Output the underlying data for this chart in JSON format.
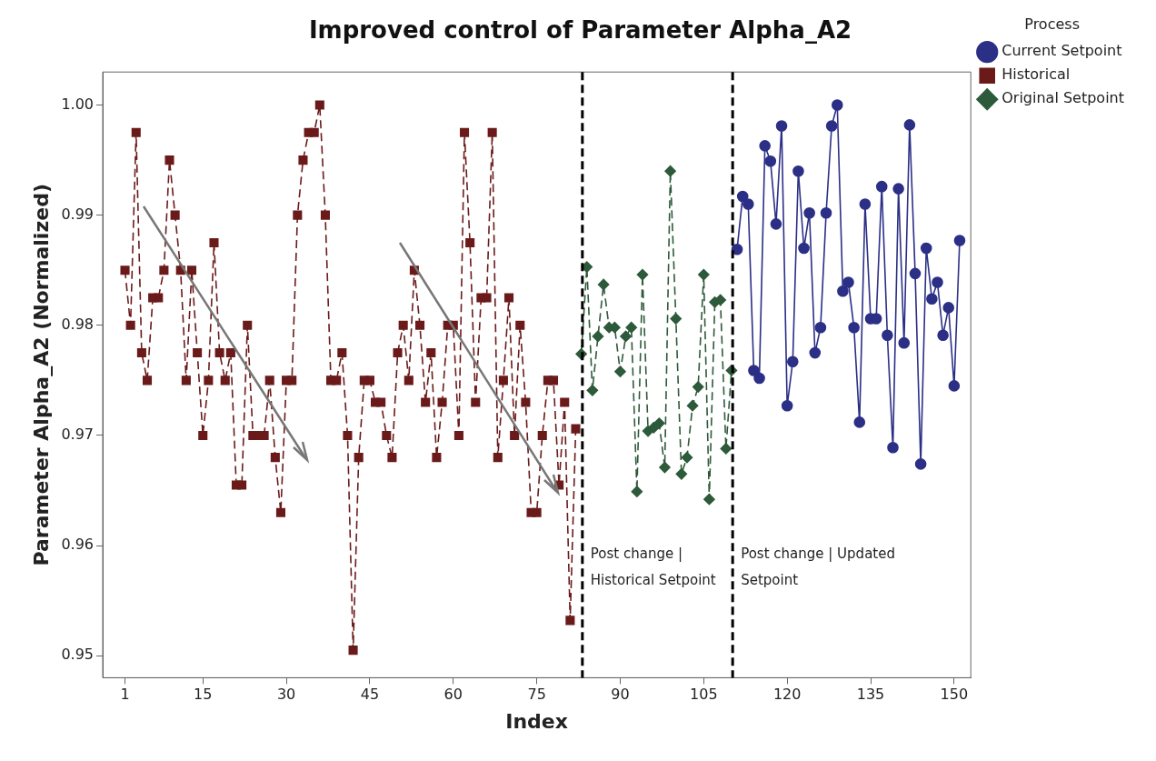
{
  "chart_data": {
    "type": "line",
    "title": "Improved control of Parameter Alpha_A2",
    "xlabel": "Index",
    "ylabel": "Parameter Alpha_A2 (Normalized)",
    "legend_title": "Process",
    "legend": "top right",
    "grid": false,
    "xlim": [
      -3,
      153
    ],
    "xticks": [
      1,
      15,
      30,
      45,
      60,
      75,
      90,
      105,
      120,
      135,
      150
    ],
    "ylim": [
      0.948,
      1.003
    ],
    "yticks": [
      0.95,
      0.96,
      0.97,
      0.98,
      0.99,
      {
        "value": 1,
        "label": "1.00"
      }
    ],
    "series": [
      {
        "name": "Current Setpoint",
        "color": "#2b2f86",
        "marker": "circle",
        "line_style": "solid",
        "x": [
          111,
          112,
          113,
          114,
          115,
          116,
          117,
          118,
          119,
          120,
          121,
          122,
          123,
          124,
          125,
          126,
          127,
          128,
          129,
          130,
          131,
          132,
          133,
          134,
          135,
          136,
          137,
          138,
          139,
          140,
          141,
          142,
          143,
          144,
          145,
          146,
          147,
          148,
          149,
          150,
          151
        ],
        "values": [
          0.9869,
          0.9917,
          0.991,
          0.9759,
          0.9752,
          0.9963,
          0.9949,
          0.9892,
          0.9981,
          0.9727,
          0.9767,
          0.994,
          0.987,
          0.9902,
          0.9775,
          0.9798,
          0.9902,
          0.9981,
          1.0,
          0.9831,
          0.9839,
          0.9798,
          0.9712,
          0.991,
          0.9806,
          0.9806,
          0.9926,
          0.9791,
          0.9689,
          0.9924,
          0.9784,
          0.9982,
          0.9847,
          0.9674,
          0.987,
          0.9824,
          0.9839,
          0.9791,
          0.9816,
          0.9745,
          0.9877
        ]
      },
      {
        "name": "Historical",
        "color": "#6b1a1a",
        "marker": "square",
        "line_style": "dashed",
        "x": [
          1,
          2,
          3,
          4,
          5,
          6,
          7,
          8,
          9,
          10,
          11,
          12,
          13,
          14,
          15,
          16,
          17,
          18,
          19,
          20,
          21,
          22,
          23,
          24,
          25,
          26,
          27,
          28,
          29,
          30,
          31,
          32,
          33,
          34,
          35,
          36,
          37,
          38,
          39,
          40,
          41,
          42,
          43,
          44,
          45,
          46,
          47,
          48,
          49,
          50,
          51,
          52,
          53,
          54,
          55,
          56,
          57,
          58,
          59,
          60,
          61,
          62,
          63,
          64,
          65,
          66,
          67,
          68,
          69,
          70,
          71,
          72,
          73,
          74,
          75,
          76,
          77,
          78,
          79,
          80,
          81,
          82
        ],
        "values": [
          0.985,
          0.98,
          0.9975,
          0.9775,
          0.975,
          0.9825,
          0.9825,
          0.985,
          0.995,
          0.99,
          0.985,
          0.975,
          0.985,
          0.9775,
          0.97,
          0.975,
          0.9875,
          0.9775,
          0.975,
          0.9775,
          0.9655,
          0.9655,
          0.98,
          0.97,
          0.97,
          0.97,
          0.975,
          0.968,
          0.963,
          0.975,
          0.975,
          0.99,
          0.995,
          0.9975,
          0.9975,
          1.0,
          0.99,
          0.975,
          0.975,
          0.9775,
          0.97,
          0.9505,
          0.968,
          0.975,
          0.975,
          0.973,
          0.973,
          0.97,
          0.968,
          0.9775,
          0.98,
          0.975,
          0.985,
          0.98,
          0.973,
          0.9775,
          0.968,
          0.973,
          0.98,
          0.98,
          0.97,
          0.9975,
          0.9875,
          0.973,
          0.9825,
          0.9825,
          0.9975,
          0.968,
          0.975,
          0.9825,
          0.97,
          0.98,
          0.973,
          0.963,
          0.963,
          0.97,
          0.975,
          0.975,
          0.9655,
          0.973,
          0.9532,
          0.9706
        ]
      },
      {
        "name": "Original Setpoint",
        "color": "#2d5a3a",
        "marker": "diamond",
        "line_style": "dashed",
        "x": [
          83,
          84,
          85,
          86,
          87,
          88,
          89,
          90,
          91,
          92,
          93,
          94,
          95,
          96,
          97,
          98,
          99,
          100,
          101,
          102,
          103,
          104,
          105,
          106,
          107,
          108,
          109,
          110
        ],
        "values": [
          0.9774,
          0.9853,
          0.9741,
          0.979,
          0.9837,
          0.9798,
          0.9798,
          0.9758,
          0.979,
          0.9798,
          0.9649,
          0.9846,
          0.9704,
          0.9707,
          0.9711,
          0.9671,
          0.994,
          0.9806,
          0.9665,
          0.968,
          0.9727,
          0.9744,
          0.9846,
          0.9642,
          0.9821,
          0.9823,
          0.9688,
          0.9759
        ]
      }
    ],
    "ref_lines": [
      {
        "axis": "x",
        "value": 83.2,
        "label": "Post change | Historical Setpoint",
        "color": "#000000",
        "line_style": "dashed"
      },
      {
        "axis": "x",
        "value": 110.2,
        "label": "Post change | Updated Setpoint",
        "color": "#000000",
        "line_style": "dashed"
      }
    ]
  }
}
